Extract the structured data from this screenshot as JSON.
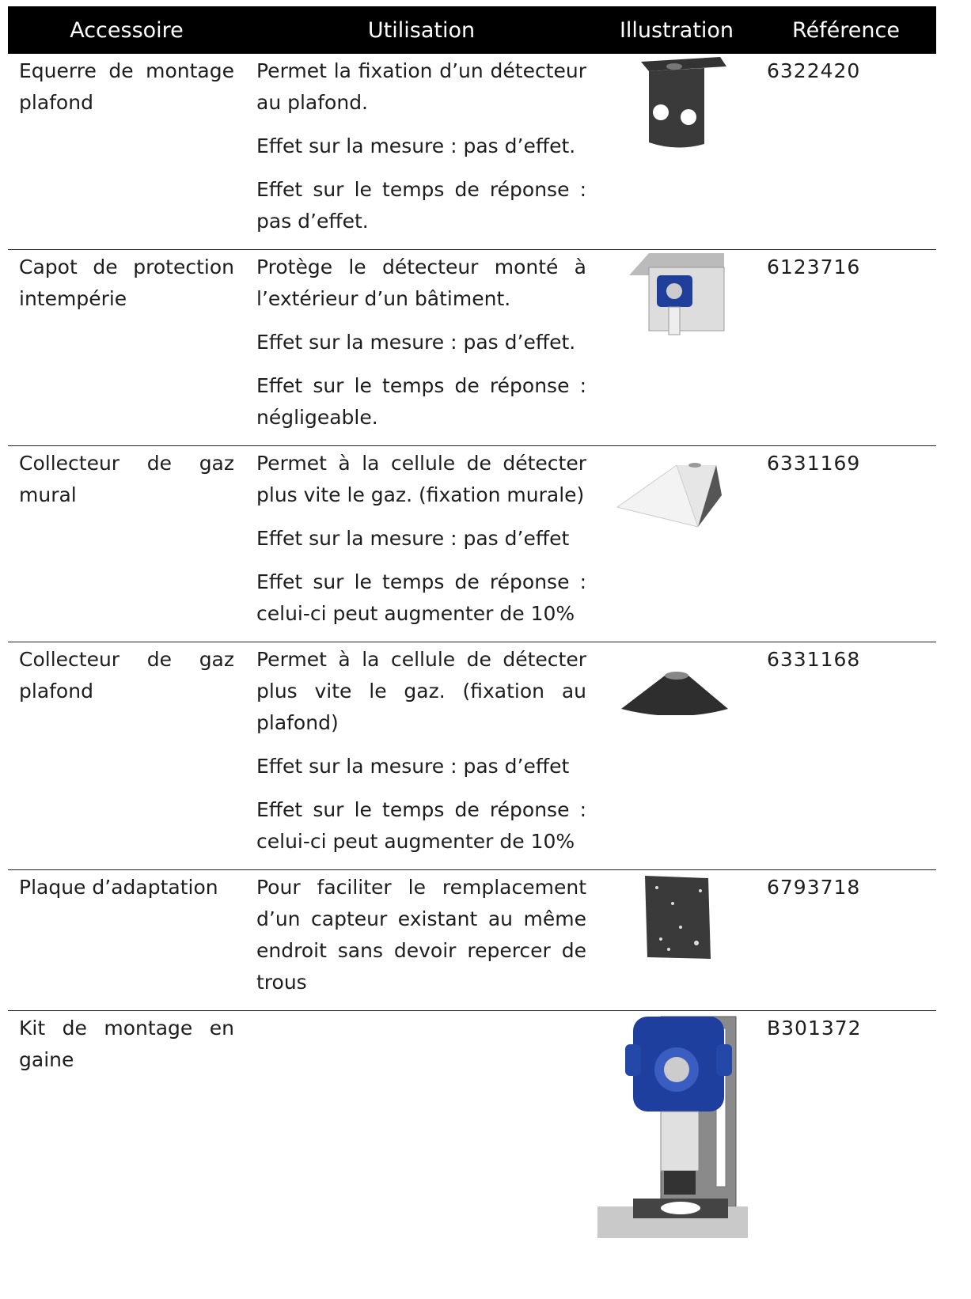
{
  "table": {
    "headers": [
      "Accessoire",
      "Utilisation",
      "Illustration",
      "Référence"
    ],
    "rows": [
      {
        "accessoire": "Equerre de montage plafond",
        "utilisation": [
          "Permet la fixation d’un détecteur au plafond.",
          "Effet sur la mesure : pas d’effet.",
          "Effet sur le temps de réponse : pas d’effet."
        ],
        "reference": "6322420"
      },
      {
        "accessoire": "Capot de protection intempérie",
        "utilisation": [
          "Protège le détecteur monté à l’extérieur d’un bâtiment.",
          "Effet sur la mesure : pas d’effet.",
          "Effet sur le temps de réponse : négligeable."
        ],
        "reference": "6123716"
      },
      {
        "accessoire": "Collecteur de gaz mural",
        "utilisation": [
          "Permet à la cellule de détecter plus vite le gaz. (fixation murale)",
          "Effet sur la mesure : pas d’effet",
          "Effet sur le temps de réponse : celui-ci peut augmenter de 10%"
        ],
        "reference": "6331169"
      },
      {
        "accessoire": "Collecteur de gaz plafond",
        "utilisation": [
          "Permet à la cellule de détecter plus vite le gaz. (fixation au plafond)",
          "Effet sur la mesure : pas d’effet",
          "Effet sur le temps de réponse : celui-ci peut augmenter de 10%"
        ],
        "reference": "6331168"
      },
      {
        "accessoire": "Plaque d’adaptation",
        "utilisation": [
          "Pour faciliter le remplacement d’un capteur existant au même endroit sans devoir repercer de trous"
        ],
        "reference": "6793718"
      },
      {
        "accessoire": "Kit de montage en gaine",
        "utilisation": [],
        "reference": "B301372"
      }
    ]
  }
}
